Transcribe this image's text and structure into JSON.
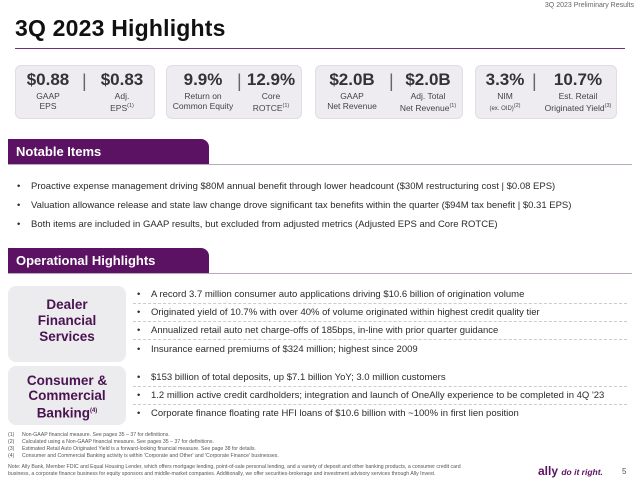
{
  "header": {
    "top_label": "3Q 2023 Preliminary Results",
    "title": "3Q 2023 Highlights"
  },
  "metrics": [
    {
      "a_value": "$0.88",
      "a_label_1": "GAAP",
      "a_label_2": "EPS",
      "a_sup": "",
      "b_value": "$0.83",
      "b_label_1": "Adj.",
      "b_label_2": "EPS",
      "b_sup": "(1)"
    },
    {
      "a_value": "9.9%",
      "a_label_1": "Return on",
      "a_label_2": "Common Equity",
      "a_sup": "",
      "b_value": "12.9%",
      "b_label_1": "Core",
      "b_label_2": "ROTCE",
      "b_sup": "(1)"
    },
    {
      "a_value": "$2.0B",
      "a_label_1": "GAAP",
      "a_label_2": "Net Revenue",
      "a_sup": "",
      "b_value": "$2.0B",
      "b_label_1": "Adj. Total",
      "b_label_2": "Net Revenue",
      "b_sup": "(1)"
    },
    {
      "a_value": "3.3%",
      "a_label_1": "NIM",
      "a_label_2": "(ex. OID)",
      "a_sup": "(2)",
      "b_value": "10.7%",
      "b_label_1": "Est. Retail",
      "b_label_2": "Originated Yield",
      "b_sup": "(3)"
    }
  ],
  "notable_items": {
    "heading": "Notable Items",
    "bullets": [
      "Proactive expense management driving $80M annual benefit through lower headcount ($30M restructuring cost | $0.08 EPS)",
      "Valuation allowance release and state law change drove significant tax benefits within the quarter ($94M tax benefit | $0.31 EPS)",
      "Both items are included in GAAP results, but excluded from adjusted metrics (Adjusted EPS and Core ROTCE)"
    ]
  },
  "operational": {
    "heading": "Operational Highlights",
    "dealer": {
      "label_1": "Dealer",
      "label_2": "Financial",
      "label_3": "Services",
      "bullets": [
        "A record 3.7 million consumer auto applications driving $10.6 billion of origination volume",
        "Originated yield of 10.7% with over 40% of volume originated within highest credit quality tier",
        "Annualized retail auto net charge-offs of 185bps, in-line with prior quarter guidance",
        "Insurance earned premiums of $324 million; highest since 2009"
      ]
    },
    "consumer": {
      "label_1": "Consumer &",
      "label_2": "Commercial",
      "label_3": "Banking",
      "label_sup": "(4)",
      "bullets": [
        "$153 billion of total deposits, up $7.1 billion YoY; 3.0 million customers",
        "1.2 million active credit cardholders; integration and launch of OneAlly experience to be completed in 4Q '23",
        "Corporate finance floating rate HFI loans of $10.6 billion with ~100% in first lien position"
      ]
    }
  },
  "footnotes": [
    {
      "num": "(1)",
      "text": "Non-GAAP financial measure. See pages 35 – 37 for definitions."
    },
    {
      "num": "(2)",
      "text": "Calculated using a Non-GAAP financial measure. See pages 35 – 37 for definitions."
    },
    {
      "num": "(3)",
      "text": "Estimated Retail Auto Originated Yield is a forward-looking financial measure. See page 38 for details."
    },
    {
      "num": "(4)",
      "text": "Consumer and Commercial Banking activity is within 'Corporate and Other' and 'Corporate Finance' businesses."
    }
  ],
  "note_line_1": "Note: Ally Bank, Member FDIC and Equal Housing Lender, which offers mortgage lending, point-of-sale personal lending, and a variety of deposit and other banking products, a consumer credit card",
  "note_line_2": "business, a corporate finance business for equity sponsors and middle-market companies. Additionally, we offer securities-brokerage and investment advisory services through Ally Invest.",
  "footer": {
    "logo_main": "ally",
    "logo_tag": "do it right.",
    "page_number": "5"
  },
  "colors": {
    "brand_purple": "#5b1263",
    "panel_gray": "#eeecf0"
  }
}
